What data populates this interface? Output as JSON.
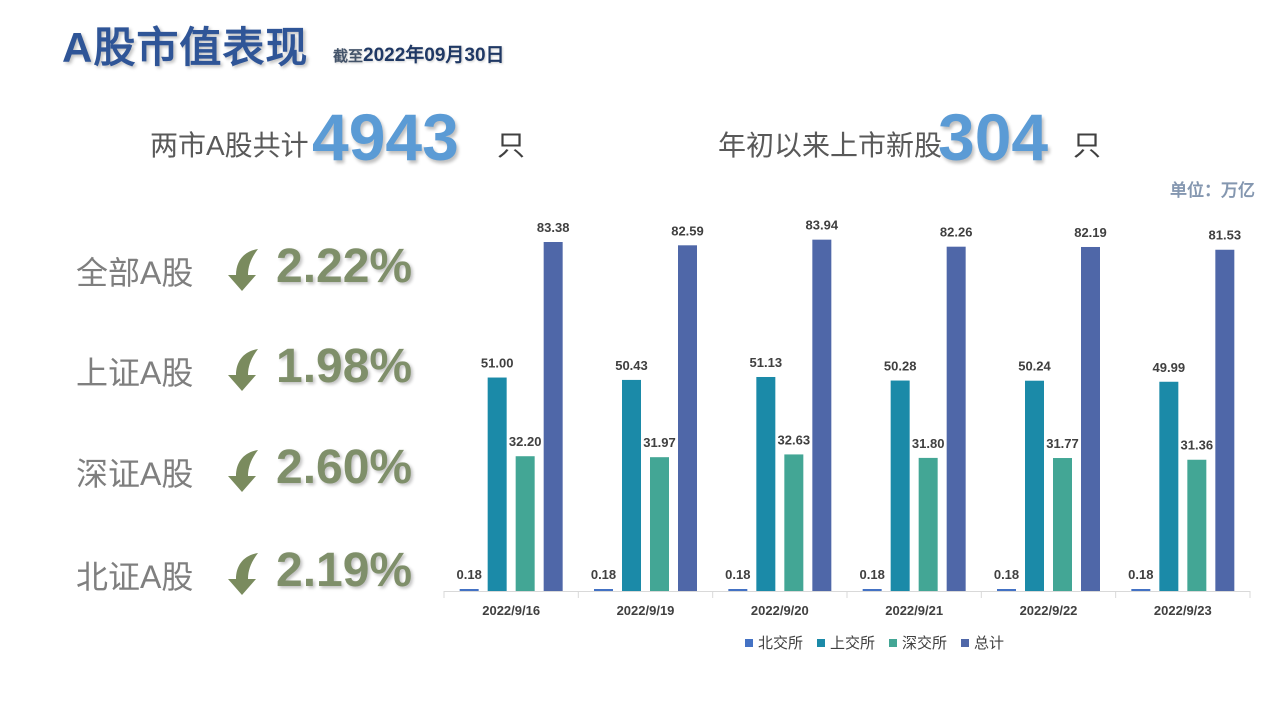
{
  "header": {
    "title": "A股市值表现",
    "asof_prefix": "截至",
    "asof_date": "2022年09月30日"
  },
  "stats": {
    "total_label": "两市A股共计",
    "total_value": "4943",
    "total_unit": "只",
    "new_label": "年初以来上市新股",
    "new_value": "304",
    "new_unit": "只"
  },
  "unit_note": "单位：万亿",
  "performance": [
    {
      "label": "全部A股",
      "value": "2.22%",
      "direction": "down"
    },
    {
      "label": "上证A股",
      "value": "1.98%",
      "direction": "down"
    },
    {
      "label": "深证A股",
      "value": "2.60%",
      "direction": "down"
    },
    {
      "label": "北证A股",
      "value": "2.19%",
      "direction": "down"
    }
  ],
  "colors": {
    "title": "#2f5597",
    "stat_number": "#5b9bd5",
    "perf_value": "#7f8f6a",
    "arrow": "#7a8b5e"
  },
  "chart_data": {
    "type": "bar",
    "categories": [
      "2022/9/16",
      "2022/9/19",
      "2022/9/20",
      "2022/9/21",
      "2022/9/22",
      "2022/9/23"
    ],
    "series": [
      {
        "name": "北交所",
        "color": "#4472c4",
        "values": [
          0.18,
          0.18,
          0.18,
          0.18,
          0.18,
          0.18
        ]
      },
      {
        "name": "上交所",
        "color": "#1b8aa8",
        "values": [
          51.0,
          50.43,
          51.13,
          50.28,
          50.24,
          49.99
        ]
      },
      {
        "name": "深交所",
        "color": "#43a695",
        "values": [
          32.2,
          31.97,
          32.63,
          31.8,
          31.77,
          31.36
        ]
      },
      {
        "name": "总计",
        "color": "#4f67a8",
        "values": [
          83.38,
          82.59,
          83.94,
          82.26,
          82.19,
          81.53
        ]
      }
    ],
    "ylim": [
      0,
      90
    ],
    "grid": false,
    "legend_position": "bottom",
    "data_labels": true
  }
}
